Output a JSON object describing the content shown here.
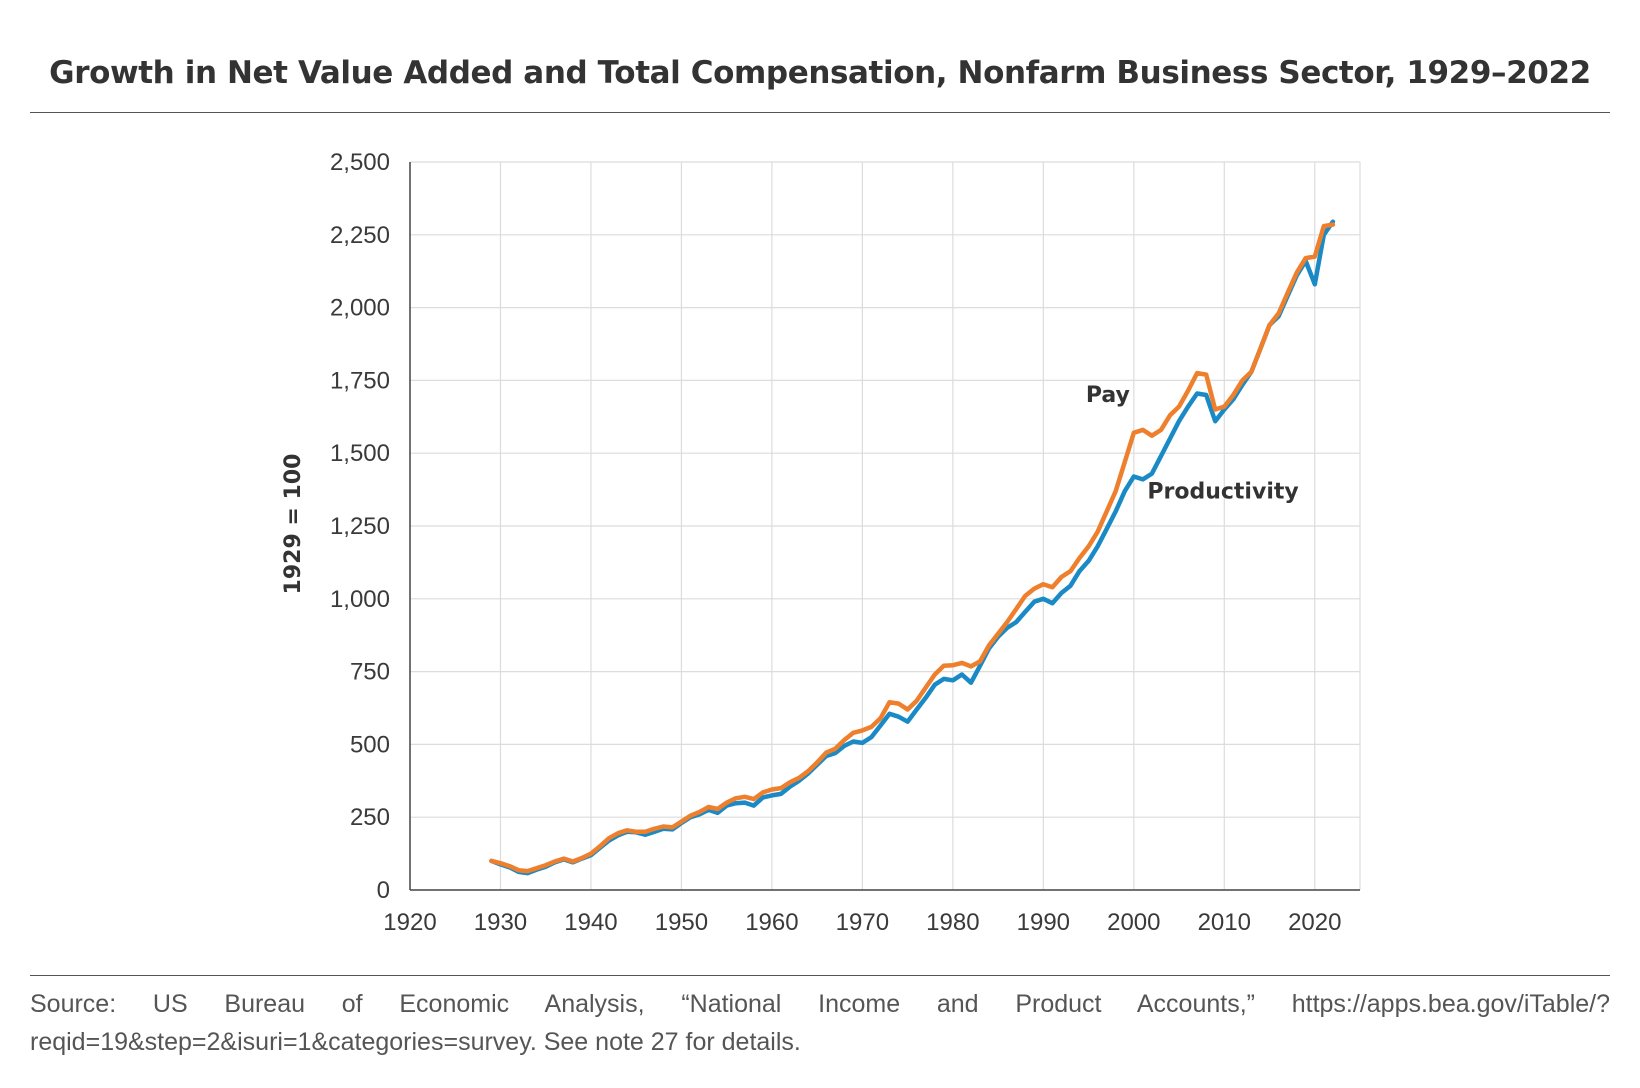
{
  "chart_data": {
    "type": "line",
    "title": "Growth in Net Value Added and Total Compensation, Nonfarm Business Sector, 1929–2022",
    "xlabel": "",
    "ylabel": "1929 = 100",
    "xlim": [
      1920,
      2025
    ],
    "ylim": [
      0,
      2500
    ],
    "xticks": [
      1920,
      1930,
      1940,
      1950,
      1960,
      1970,
      1980,
      1990,
      2000,
      2010,
      2020
    ],
    "xtick_labels": [
      "1920",
      "1930",
      "1940",
      "1950",
      "1960",
      "1970",
      "1980",
      "1990",
      "2000",
      "2010",
      "2020"
    ],
    "yticks": [
      0,
      250,
      500,
      750,
      1000,
      1250,
      1500,
      1750,
      2000,
      2250,
      2500
    ],
    "ytick_labels": [
      "0",
      "250",
      "500",
      "750",
      "1,000",
      "1,250",
      "1,500",
      "1,750",
      "2,000",
      "2,250",
      "2,500"
    ],
    "grid": true,
    "x": [
      1929,
      1930,
      1931,
      1932,
      1933,
      1934,
      1935,
      1936,
      1937,
      1938,
      1939,
      1940,
      1941,
      1942,
      1943,
      1944,
      1945,
      1946,
      1947,
      1948,
      1949,
      1950,
      1951,
      1952,
      1953,
      1954,
      1955,
      1956,
      1957,
      1958,
      1959,
      1960,
      1961,
      1962,
      1963,
      1964,
      1965,
      1966,
      1967,
      1968,
      1969,
      1970,
      1971,
      1972,
      1973,
      1974,
      1975,
      1976,
      1977,
      1978,
      1979,
      1980,
      1981,
      1982,
      1983,
      1984,
      1985,
      1986,
      1987,
      1988,
      1989,
      1990,
      1991,
      1992,
      1993,
      1994,
      1995,
      1996,
      1997,
      1998,
      1999,
      2000,
      2001,
      2002,
      2003,
      2004,
      2005,
      2006,
      2007,
      2008,
      2009,
      2010,
      2011,
      2012,
      2013,
      2014,
      2015,
      2016,
      2017,
      2018,
      2019,
      2020,
      2021,
      2022
    ],
    "series": [
      {
        "name": "Productivity",
        "color": "#1a8ac6",
        "values": [
          100,
          88,
          78,
          62,
          58,
          70,
          80,
          95,
          105,
          95,
          108,
          120,
          145,
          170,
          188,
          200,
          198,
          190,
          200,
          210,
          208,
          230,
          250,
          260,
          275,
          265,
          290,
          298,
          300,
          290,
          318,
          325,
          330,
          355,
          375,
          400,
          430,
          460,
          470,
          495,
          510,
          505,
          525,
          565,
          605,
          595,
          578,
          620,
          660,
          705,
          725,
          720,
          740,
          712,
          770,
          830,
          870,
          900,
          920,
          955,
          990,
          1000,
          985,
          1020,
          1045,
          1095,
          1130,
          1180,
          1240,
          1300,
          1370,
          1420,
          1410,
          1430,
          1490,
          1550,
          1610,
          1660,
          1705,
          1700,
          1610,
          1650,
          1685,
          1735,
          1780,
          1860,
          1940,
          1970,
          2040,
          2110,
          2160,
          2080,
          2250,
          2295
        ]
      },
      {
        "name": "Pay",
        "color": "#ee7f2d",
        "values": [
          100,
          92,
          82,
          68,
          65,
          75,
          85,
          98,
          108,
          98,
          110,
          125,
          150,
          178,
          195,
          205,
          200,
          200,
          210,
          218,
          215,
          235,
          255,
          268,
          285,
          278,
          300,
          315,
          320,
          312,
          335,
          345,
          350,
          370,
          385,
          408,
          438,
          472,
          485,
          515,
          540,
          548,
          560,
          590,
          645,
          640,
          620,
          650,
          695,
          740,
          770,
          772,
          780,
          768,
          785,
          840,
          880,
          920,
          965,
          1010,
          1035,
          1050,
          1040,
          1075,
          1095,
          1140,
          1180,
          1230,
          1300,
          1370,
          1470,
          1570,
          1580,
          1560,
          1580,
          1630,
          1660,
          1715,
          1775,
          1770,
          1650,
          1660,
          1700,
          1750,
          1780,
          1860,
          1940,
          1980,
          2050,
          2120,
          2170,
          2175,
          2280,
          2285
        ]
      }
    ],
    "annotations": [
      {
        "text": "Pay",
        "x": 1994.7,
        "y": 1675
      },
      {
        "text": "Productivity",
        "x": 2001.5,
        "y": 1345
      }
    ]
  },
  "source": "Source: US Bureau of Economic Analysis, “National Income and Product Accounts,” https://apps.bea.gov/iTable/?reqid=19&step=2&isuri=1&categories=survey. See note 27 for details."
}
